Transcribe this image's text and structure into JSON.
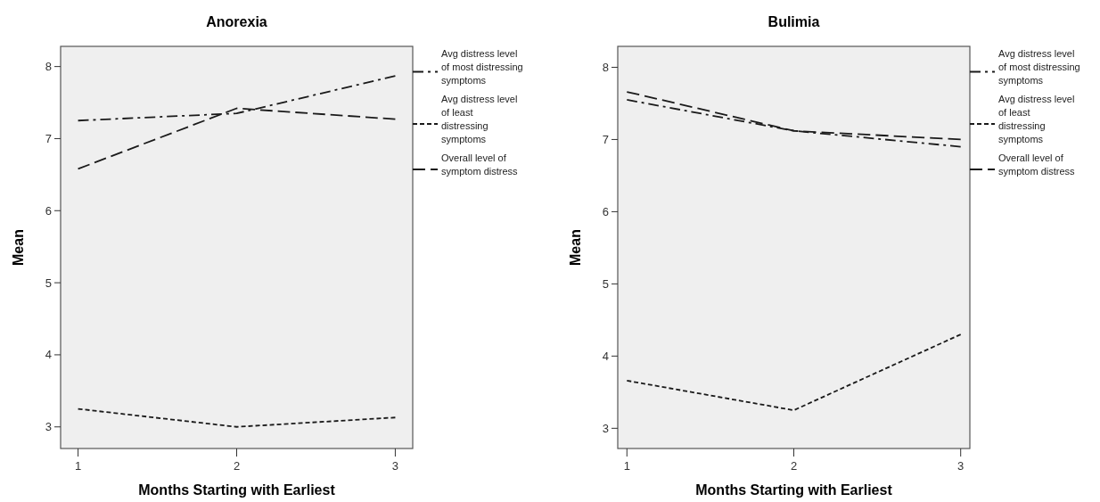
{
  "chart_data": [
    {
      "type": "line",
      "title": "Anorexia",
      "xlabel": "Months Starting with Earliest",
      "ylabel": "Mean",
      "x": [
        1,
        2,
        3
      ],
      "xlim": [
        0.89,
        3.11
      ],
      "xticks": [
        1,
        2,
        3
      ],
      "ylim": [
        2.7,
        8.28
      ],
      "yticks": [
        3,
        4,
        5,
        6,
        7,
        8
      ],
      "grid": false,
      "legend": "right",
      "marker": "none",
      "series": [
        {
          "name": "Avg distress level of most distressing symptoms",
          "color": "#1a1a1a",
          "values": [
            7.25,
            7.35,
            7.87
          ],
          "line_style": "dashdot"
        },
        {
          "name": "Avg distress level of least distressing symptoms",
          "color": "#1a1a1a",
          "values": [
            3.25,
            3.0,
            3.13
          ],
          "line_style": "dotted"
        },
        {
          "name": "Overall level of symptom distress",
          "color": "#1a1a1a",
          "values": [
            6.58,
            7.42,
            7.27
          ],
          "line_style": "dashed"
        }
      ]
    },
    {
      "type": "line",
      "title": "Bulimia",
      "xlabel": "Months Starting with Earliest",
      "ylabel": "Mean",
      "x": [
        1,
        2,
        3
      ],
      "xlim": [
        0.945,
        3.055
      ],
      "xticks": [
        1,
        2,
        3
      ],
      "ylim": [
        2.72,
        8.29
      ],
      "yticks": [
        3,
        4,
        5,
        6,
        7,
        8
      ],
      "grid": false,
      "legend": "right",
      "marker": "none",
      "series": [
        {
          "name": "Avg distress level of most distressing symptoms",
          "color": "#1a1a1a",
          "values": [
            7.55,
            7.12,
            6.9
          ],
          "line_style": "dashdot"
        },
        {
          "name": "Avg distress level of least distressing symptoms",
          "color": "#1a1a1a",
          "values": [
            3.66,
            3.25,
            4.3
          ],
          "line_style": "dotted"
        },
        {
          "name": "Overall level of symptom distress",
          "color": "#1a1a1a",
          "values": [
            7.66,
            7.12,
            7.0
          ],
          "line_style": "dashed"
        }
      ]
    }
  ]
}
